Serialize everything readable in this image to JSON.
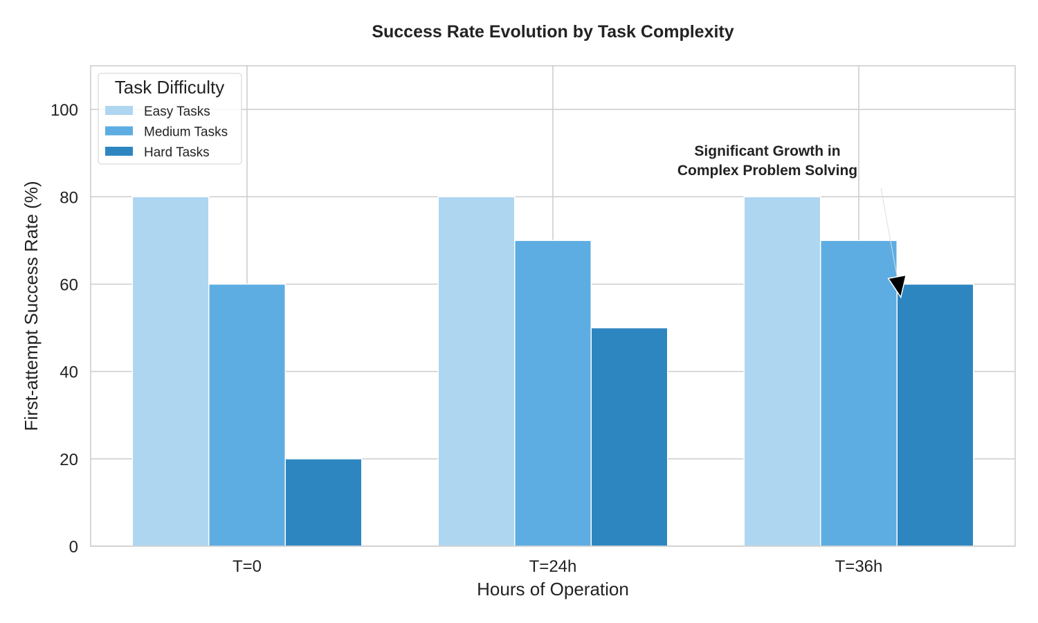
{
  "chart_data": {
    "type": "bar",
    "title": "Success Rate Evolution by Task Complexity",
    "xlabel": "Hours of Operation",
    "ylabel": "First-attempt Success Rate (%)",
    "categories": [
      "T=0",
      "T=24h",
      "T=36h"
    ],
    "series": [
      {
        "name": "Easy Tasks",
        "values": [
          80,
          80,
          80
        ],
        "color": "#aed6f1"
      },
      {
        "name": "Medium Tasks",
        "values": [
          60,
          70,
          70
        ],
        "color": "#5dade2"
      },
      {
        "name": "Hard Tasks",
        "values": [
          20,
          50,
          60
        ],
        "color": "#2e86c1"
      }
    ],
    "ylim": [
      0,
      110
    ],
    "yticks": [
      0,
      20,
      40,
      60,
      80,
      100
    ],
    "grid": true,
    "legend": {
      "title": "Task Difficulty",
      "placement": "top-left"
    },
    "annotation": {
      "lines": [
        "Significant Growth in",
        "Complex Problem Solving"
      ],
      "target_category": "T=36h",
      "target_series": "Hard Tasks",
      "target_value": 57,
      "text_value": 88
    }
  }
}
